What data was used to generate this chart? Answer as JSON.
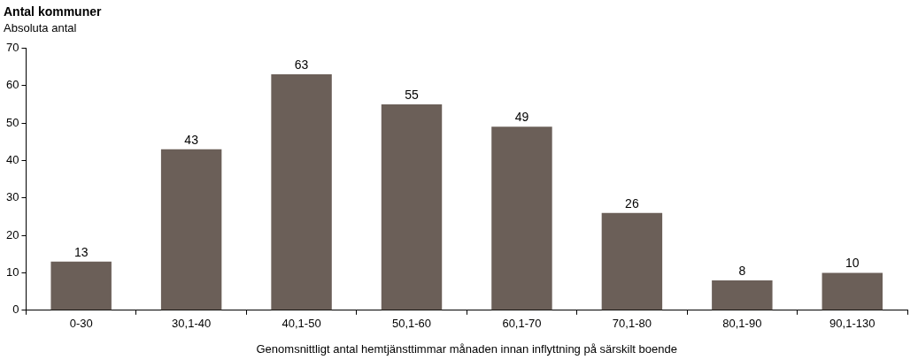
{
  "chart_data": {
    "type": "bar",
    "title": "Antal kommuner",
    "subtitle": "Absoluta antal",
    "xlabel": "Genomsnittligt antal hemtjänsttimmar månaden innan inflyttning på särskilt boende",
    "categories": [
      "0-30",
      "30,1-40",
      "40,1-50",
      "50,1-60",
      "60,1-70",
      "70,1-80",
      "80,1-90",
      "90,1-130"
    ],
    "values": [
      13,
      43,
      63,
      55,
      49,
      26,
      8,
      10
    ],
    "color": "#6b5f58",
    "ylim": [
      0,
      70
    ],
    "yticks": [
      0,
      10,
      20,
      30,
      40,
      50,
      60,
      70
    ],
    "grid": false,
    "legend": false,
    "data_labels": true
  }
}
